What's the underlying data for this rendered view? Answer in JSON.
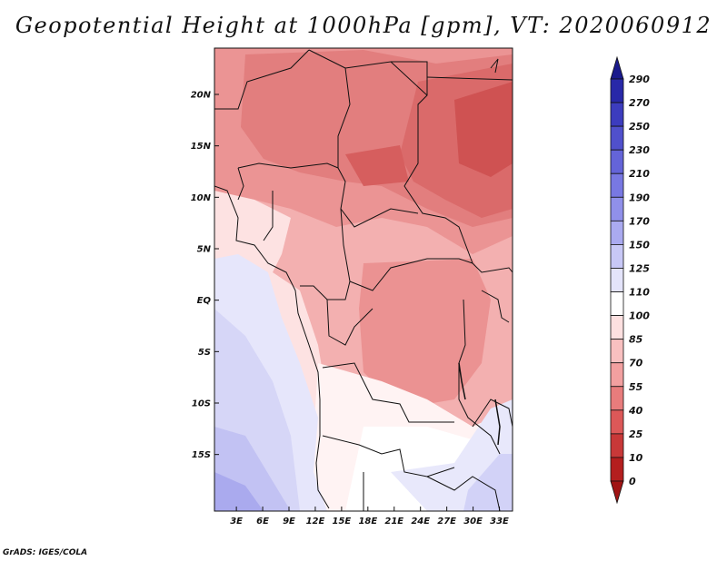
{
  "chart_data": {
    "type": "heatmap",
    "title": "Geopotential Height at 1000hPa [gpm], VT: 2020060912",
    "x_ticks": [
      "3E",
      "6E",
      "9E",
      "12E",
      "15E",
      "18E",
      "21E",
      "24E",
      "27E",
      "30E",
      "33E"
    ],
    "y_ticks": [
      "20N",
      "15N",
      "10N",
      "5N",
      "EQ",
      "5S",
      "10S",
      "15S"
    ],
    "x_range_deg": [
      0.5,
      34.5
    ],
    "y_range_deg": [
      -20.5,
      24.5
    ],
    "colorbar": {
      "levels": [
        "290",
        "270",
        "250",
        "230",
        "210",
        "190",
        "170",
        "150",
        "125",
        "110",
        "100",
        "85",
        "70",
        "55",
        "40",
        "25",
        "10",
        "0"
      ],
      "colors": [
        "#1a1a8c",
        "#2828a8",
        "#3c3cbe",
        "#5050cc",
        "#6464d8",
        "#7878e2",
        "#9090ea",
        "#aaaaf0",
        "#c8c8f6",
        "#e4e4fa",
        "#ffffff",
        "#fde0e0",
        "#f8c0c0",
        "#f2a0a0",
        "#e87c7c",
        "#dc5858",
        "#c83838",
        "#b41e1e",
        "#a01414"
      ]
    },
    "field_description_levels": {
      "north_east": "25-40",
      "north_central": "40-55",
      "sahel_west": "55-70",
      "congo_basin": "70-85",
      "gulf_coast": "100-110",
      "atlantic_south": "125-170",
      "southern_africa": "110-125"
    }
  },
  "footer": {
    "credit": "GrADS: IGES/COLA"
  }
}
